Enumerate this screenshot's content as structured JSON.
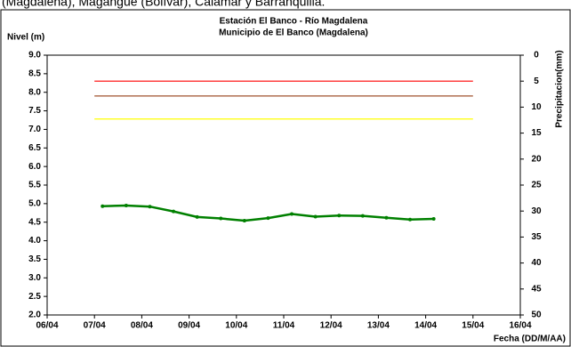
{
  "header_text": "(Magdalena), Magangue (Bolívar), Calamar y Barranquilla.",
  "chart_data": {
    "type": "line",
    "title": "Estación El Banco - Río Magdalena",
    "subtitle": "Municipio de El Banco (Magdalena)",
    "y_label": "Nivel (m)",
    "y2_label": "Precipitacion(mm)",
    "x_label": "Fecha (DD/M/AA)",
    "xlim": [
      6,
      16
    ],
    "xticks": [
      {
        "value": 6,
        "label": "06/04"
      },
      {
        "value": 7,
        "label": "07/04"
      },
      {
        "value": 8,
        "label": "08/04"
      },
      {
        "value": 9,
        "label": "09/04"
      },
      {
        "value": 10,
        "label": "10/04"
      },
      {
        "value": 11,
        "label": "11/04"
      },
      {
        "value": 12,
        "label": "12/04"
      },
      {
        "value": 13,
        "label": "13/04"
      },
      {
        "value": 14,
        "label": "14/04"
      },
      {
        "value": 15,
        "label": "15/04"
      },
      {
        "value": 16,
        "label": "16/04"
      }
    ],
    "ylim": [
      2,
      9
    ],
    "yticks": [
      {
        "value": 2,
        "label": "2.0"
      },
      {
        "value": 2.5,
        "label": "2.5"
      },
      {
        "value": 3,
        "label": "3.0"
      },
      {
        "value": 3.5,
        "label": "3.5"
      },
      {
        "value": 4,
        "label": "4.0"
      },
      {
        "value": 4.5,
        "label": "4.5"
      },
      {
        "value": 5,
        "label": "5.0"
      },
      {
        "value": 5.5,
        "label": "5.5"
      },
      {
        "value": 6,
        "label": "6.0"
      },
      {
        "value": 6.5,
        "label": "6.5"
      },
      {
        "value": 7,
        "label": "7.0"
      },
      {
        "value": 7.5,
        "label": "7.5"
      },
      {
        "value": 8,
        "label": "8.0"
      },
      {
        "value": 8.5,
        "label": "8.5"
      },
      {
        "value": 9,
        "label": "9.0"
      }
    ],
    "y2lim": [
      0,
      50
    ],
    "y2_inverted": true,
    "y2ticks": [
      0,
      5,
      10,
      15,
      20,
      25,
      30,
      35,
      40,
      45,
      50
    ],
    "reference_lines": [
      {
        "value": 8.3,
        "color": "#ff0000",
        "from": 7,
        "to": 15
      },
      {
        "value": 7.9,
        "color": "#a0522d",
        "from": 7,
        "to": 15
      },
      {
        "value": 7.28,
        "color": "#ffff00",
        "from": 7,
        "to": 15
      }
    ],
    "series": [
      {
        "name": "Nivel",
        "color": "#008000",
        "x": [
          7.17,
          7.67,
          8.17,
          8.67,
          9.17,
          9.67,
          10.17,
          10.67,
          11.17,
          11.67,
          12.17,
          12.67,
          13.17,
          13.67,
          14.17
        ],
        "values": [
          4.93,
          4.95,
          4.92,
          4.79,
          4.64,
          4.6,
          4.54,
          4.61,
          4.72,
          4.65,
          4.68,
          4.67,
          4.62,
          4.57,
          4.59
        ]
      }
    ]
  }
}
